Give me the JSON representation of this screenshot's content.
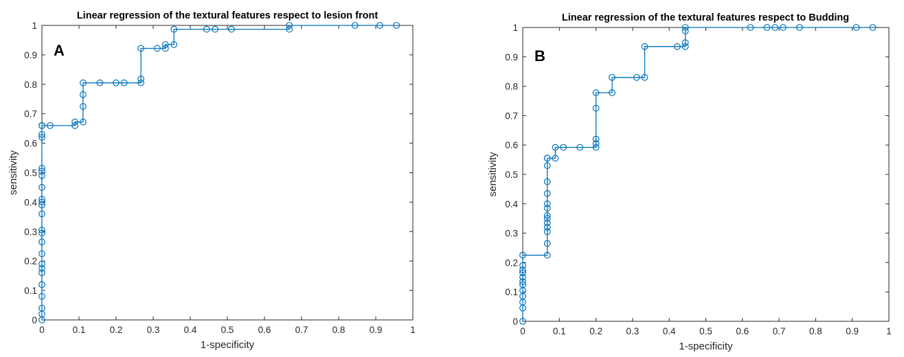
{
  "chart_data": [
    {
      "type": "line",
      "panel_letter": "A",
      "title": "Linear regression of the textural features respect to lesion front",
      "xlabel": "1-specificity",
      "ylabel": "sensitivity",
      "xlim": [
        0,
        1
      ],
      "ylim": [
        0,
        1
      ],
      "xticks": [
        "0",
        "0.1",
        "0.2",
        "0.3",
        "0.4",
        "0.5",
        "0.6",
        "0.7",
        "0.8",
        "0.9",
        "1"
      ],
      "yticks": [
        "0",
        "0.1",
        "0.2",
        "0.3",
        "0.4",
        "0.5",
        "0.6",
        "0.7",
        "0.8",
        "0.9",
        "1"
      ],
      "grid": false,
      "marker": "circle",
      "line_color": "#0072bd",
      "series": [
        {
          "x": [
            0,
            0,
            0,
            0,
            0,
            0,
            0,
            0,
            0,
            0,
            0,
            0,
            0,
            0,
            0,
            0,
            0,
            0,
            0,
            0,
            0,
            0,
            0,
            0,
            0.022,
            0.089,
            0.089,
            0.111,
            0.111,
            0.111,
            0.111,
            0.156,
            0.2,
            0.222,
            0.267,
            0.267,
            0.267,
            0.311,
            0.333,
            0.333,
            0.356,
            0.356,
            0.444,
            0.467,
            0.511,
            0.667,
            0.667,
            0.844,
            0.911,
            0.956
          ],
          "y": [
            0,
            0.02,
            0.04,
            0.08,
            0.12,
            0.16,
            0.175,
            0.19,
            0.225,
            0.265,
            0.295,
            0.305,
            0.36,
            0.39,
            0.4,
            0.41,
            0.45,
            0.49,
            0.505,
            0.515,
            0.62,
            0.63,
            0.66,
            0.66,
            0.66,
            0.66,
            0.672,
            0.672,
            0.725,
            0.765,
            0.805,
            0.805,
            0.805,
            0.805,
            0.805,
            0.818,
            0.922,
            0.922,
            0.922,
            0.935,
            0.935,
            0.987,
            0.987,
            0.987,
            0.987,
            0.987,
            1,
            1,
            1,
            1
          ]
        }
      ]
    },
    {
      "type": "line",
      "panel_letter": "B",
      "title": "Linear regression of the textural features respect to Budding",
      "xlabel": "1-specificity",
      "ylabel": "sensitivity",
      "xlim": [
        0,
        1
      ],
      "ylim": [
        0,
        1
      ],
      "xticks": [
        "0",
        "0.1",
        "0.2",
        "0.3",
        "0.4",
        "0.5",
        "0.6",
        "0.7",
        "0.8",
        "0.9",
        "1"
      ],
      "yticks": [
        "0",
        "0.1",
        "0.2",
        "0.3",
        "0.4",
        "0.5",
        "0.6",
        "0.7",
        "0.8",
        "0.9",
        "1"
      ],
      "grid": false,
      "marker": "circle",
      "line_color": "#0072bd",
      "series": [
        {
          "x": [
            0,
            0,
            0,
            0,
            0,
            0,
            0,
            0,
            0,
            0,
            0,
            0,
            0.067,
            0.067,
            0.067,
            0.067,
            0.067,
            0.067,
            0.067,
            0.067,
            0.067,
            0.067,
            0.067,
            0.067,
            0.067,
            0.067,
            0.089,
            0.089,
            0.111,
            0.156,
            0.2,
            0.2,
            0.2,
            0.2,
            0.2,
            0.244,
            0.244,
            0.311,
            0.333,
            0.333,
            0.422,
            0.444,
            0.444,
            0.444,
            0.444,
            0.622,
            0.667,
            0.689,
            0.711,
            0.756,
            0.911,
            0.956
          ],
          "y": [
            0,
            0.045,
            0.065,
            0.085,
            0.105,
            0.125,
            0.135,
            0.15,
            0.165,
            0.175,
            0.19,
            0.225,
            0.225,
            0.265,
            0.305,
            0.32,
            0.335,
            0.35,
            0.36,
            0.385,
            0.4,
            0.435,
            0.475,
            0.53,
            0.555,
            0.555,
            0.555,
            0.592,
            0.592,
            0.592,
            0.592,
            0.605,
            0.62,
            0.725,
            0.778,
            0.778,
            0.83,
            0.83,
            0.83,
            0.935,
            0.935,
            0.935,
            0.948,
            0.988,
            1,
            1,
            1,
            1,
            1,
            1,
            1,
            1
          ]
        }
      ]
    }
  ]
}
